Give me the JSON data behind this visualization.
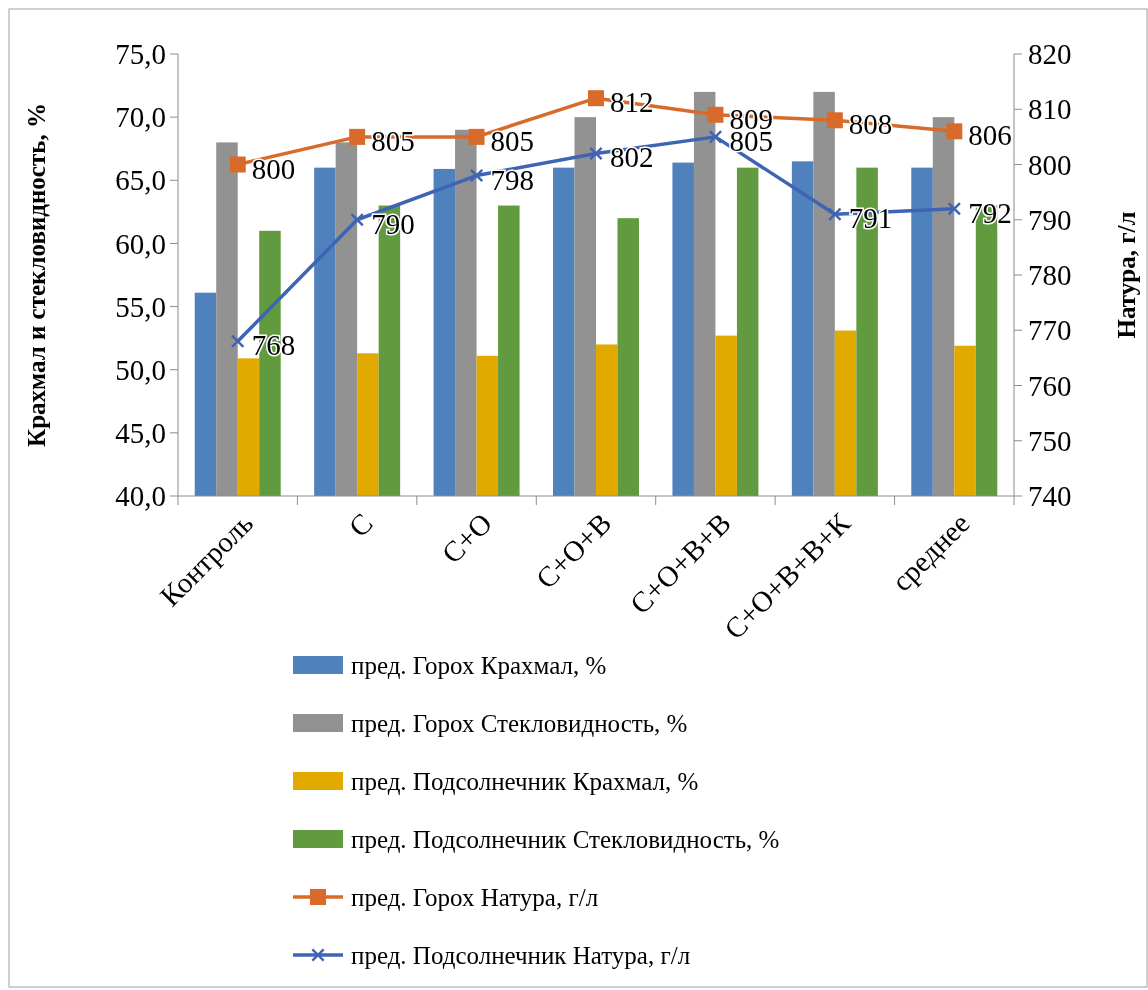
{
  "chart_data": {
    "type": "bar",
    "ylabel": "Крахмал и стекловидность, %",
    "y2label": "Натура, г/л",
    "categories": [
      "Контроль",
      "С",
      "С+О",
      "С+О+В",
      "С+О+В+В",
      "С+О+В+В+К",
      "среднее"
    ],
    "ylim": [
      40,
      75
    ],
    "yticks": [
      {
        "value": 40,
        "label": "40,0"
      },
      {
        "value": 45,
        "label": "45,0"
      },
      {
        "value": 50,
        "label": "50,0"
      },
      {
        "value": 55,
        "label": "55,0"
      },
      {
        "value": 60,
        "label": "60,0"
      },
      {
        "value": 65,
        "label": "65,0"
      },
      {
        "value": 70,
        "label": "70,0"
      },
      {
        "value": 75,
        "label": "75,0"
      }
    ],
    "y2lim": [
      740,
      820
    ],
    "y2ticks": [
      740,
      750,
      760,
      770,
      780,
      790,
      800,
      810,
      820
    ],
    "legend": "bottom",
    "grid": false,
    "series": [
      {
        "name": "пред. Горох Крахмал, %",
        "color": "#4f81bd",
        "values": [
          56.1,
          66,
          65.9,
          66,
          66.4,
          66.5,
          66
        ]
      },
      {
        "name": "пред. Горох Стекловидность, %",
        "color": "#929292",
        "values": [
          68,
          68,
          69,
          70,
          72,
          72,
          70
        ]
      },
      {
        "name": "пред. Подсолнечник Крахмал, %",
        "color": "#e2a900",
        "values": [
          50.9,
          51.3,
          51.1,
          52,
          52.7,
          53.1,
          51.9
        ]
      },
      {
        "name": "пред. Подсолнечник Стекловидность, %",
        "color": "#619a3f",
        "values": [
          61,
          63,
          63,
          62,
          66,
          66,
          63
        ]
      },
      {
        "name": "пред. Горох Натура, г/л",
        "type": "line",
        "axis": "y2",
        "marker": "square",
        "color": "#d86b2a",
        "values": [
          800,
          805,
          805,
          812,
          809,
          808,
          806
        ],
        "value_labels": [
          "800",
          "805",
          "805",
          "812",
          "809",
          "808",
          "806"
        ]
      },
      {
        "name": "пред. Подсолнечник Натура, г/л",
        "type": "line",
        "axis": "y2",
        "marker": "cross",
        "color": "#3e64b4",
        "values": [
          768,
          790,
          798,
          802,
          805,
          791,
          792
        ],
        "value_labels": [
          "768",
          "790",
          "798",
          "802",
          "805",
          "791",
          "792"
        ]
      }
    ]
  }
}
